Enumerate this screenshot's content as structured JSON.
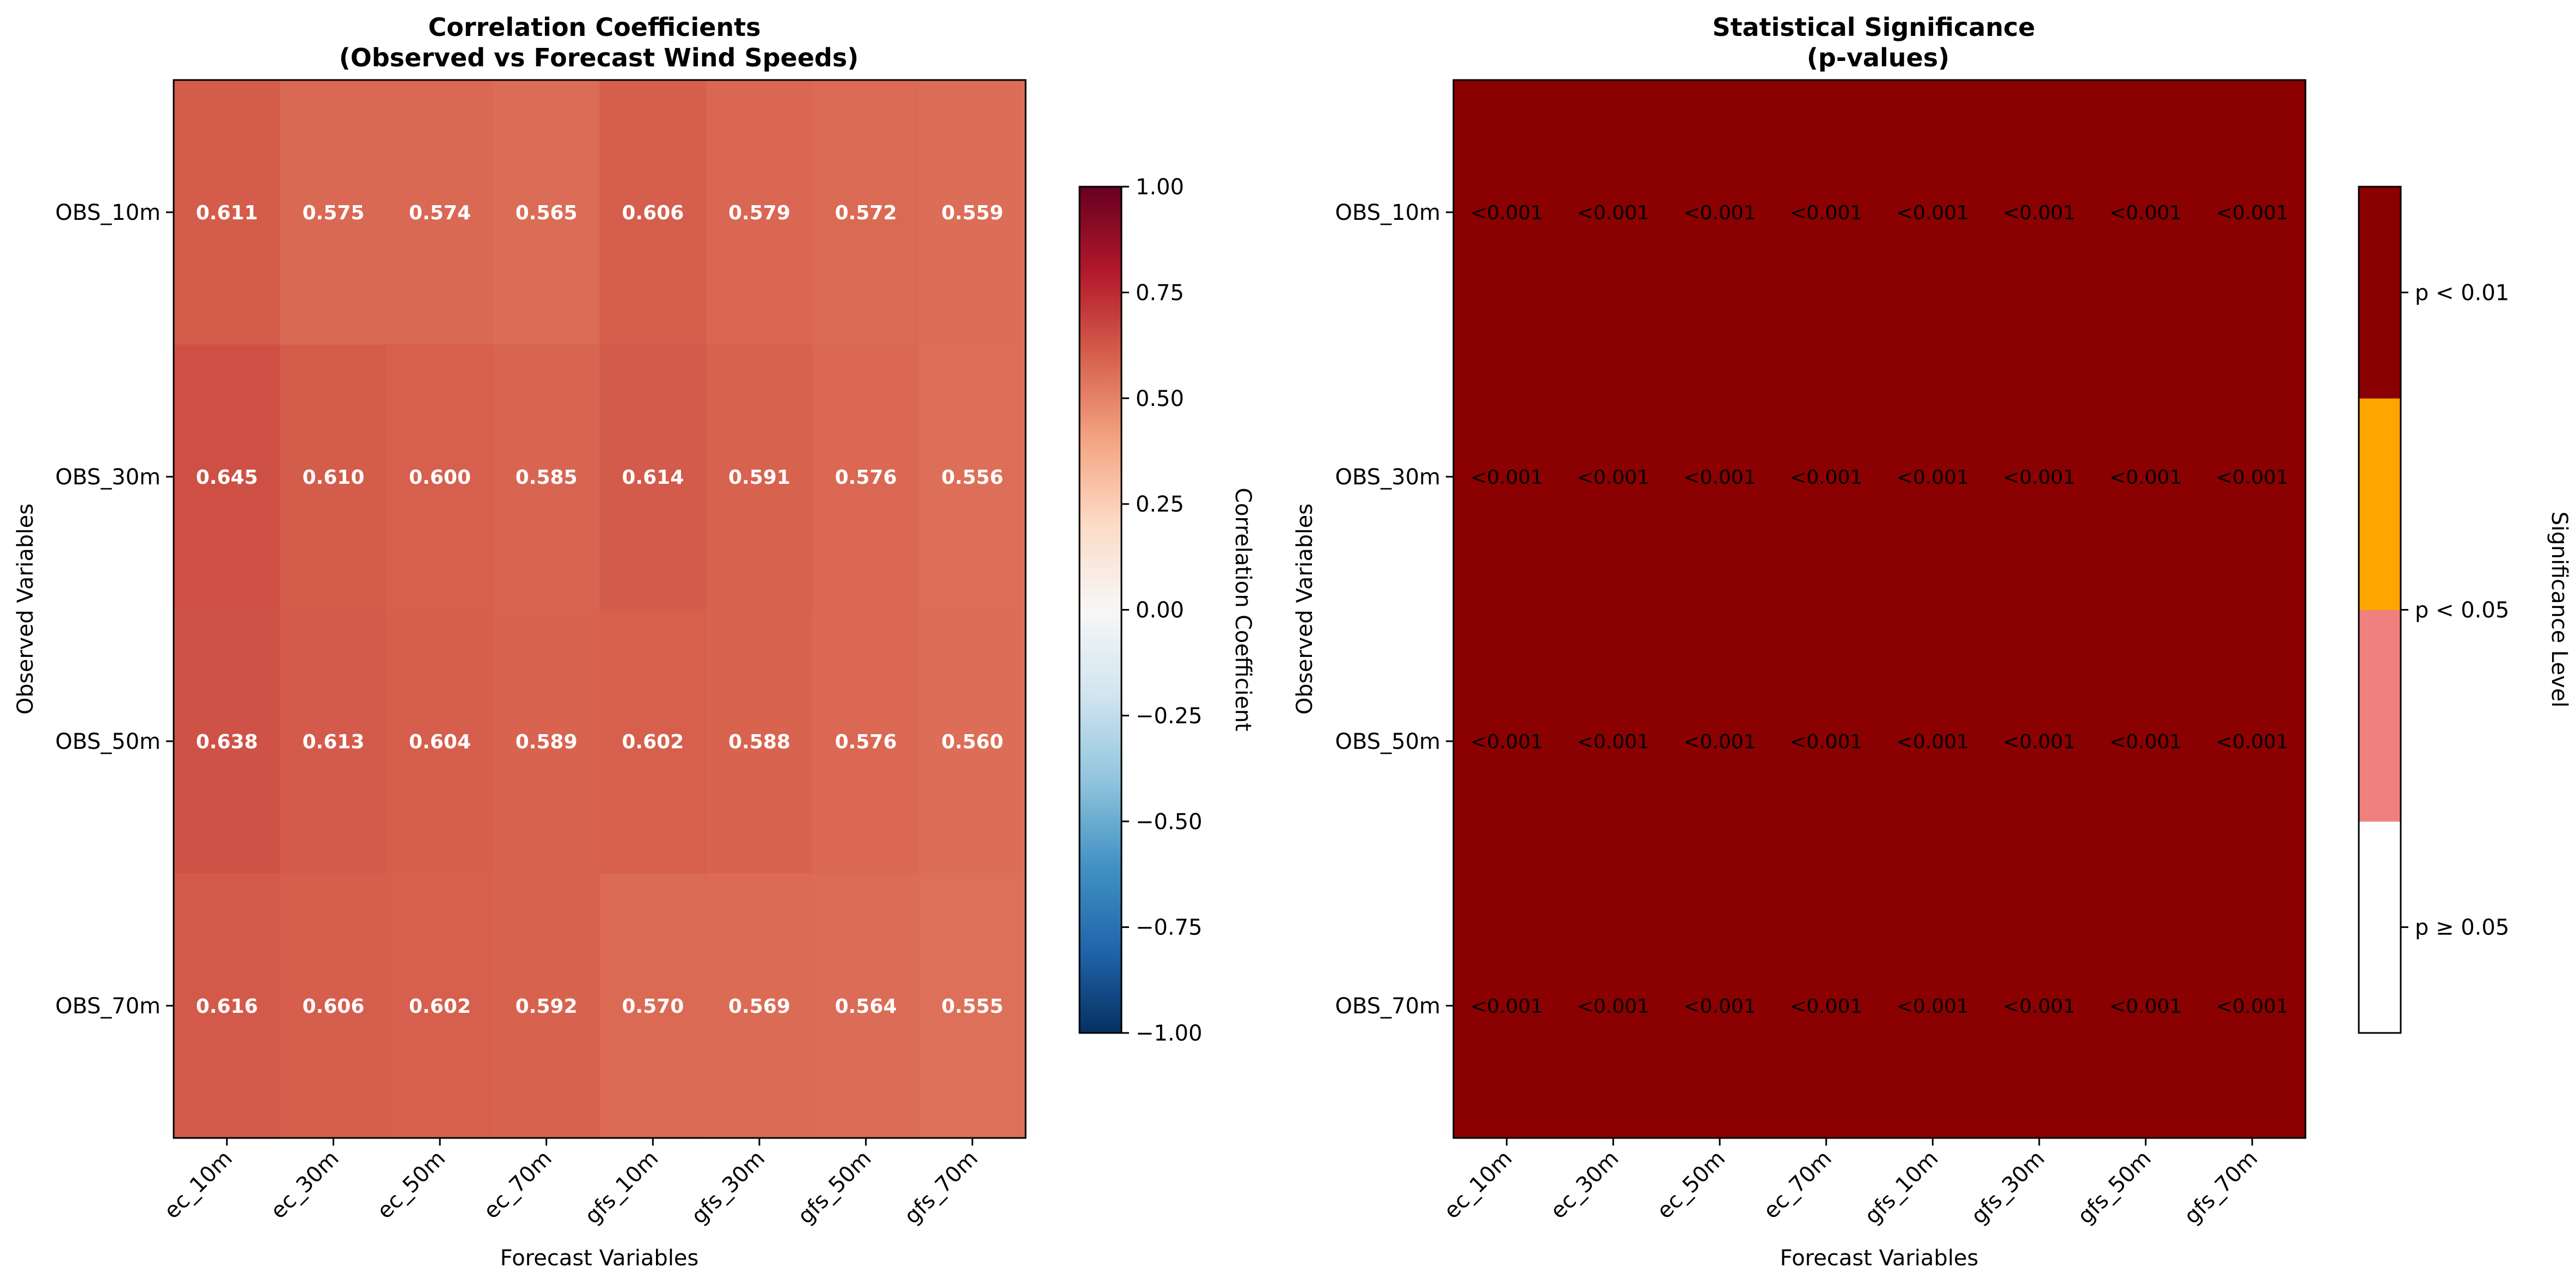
{
  "chart_data": [
    {
      "type": "heatmap",
      "title": "Correlation Coefficients\n(Observed vs Forecast Wind Speeds)",
      "xlabel": "Forecast Variables",
      "ylabel": "Observed Variables",
      "x_categories": [
        "ec_10m",
        "ec_30m",
        "ec_50m",
        "ec_70m",
        "gfs_10m",
        "gfs_30m",
        "gfs_50m",
        "gfs_70m"
      ],
      "y_categories": [
        "OBS_10m",
        "OBS_30m",
        "OBS_50m",
        "OBS_70m"
      ],
      "values": [
        [
          0.611,
          0.575,
          0.574,
          0.565,
          0.606,
          0.579,
          0.572,
          0.559
        ],
        [
          0.645,
          0.61,
          0.6,
          0.585,
          0.614,
          0.591,
          0.576,
          0.556
        ],
        [
          0.638,
          0.613,
          0.604,
          0.589,
          0.602,
          0.588,
          0.576,
          0.56
        ],
        [
          0.616,
          0.606,
          0.602,
          0.592,
          0.57,
          0.569,
          0.564,
          0.555
        ]
      ],
      "cell_labels": [
        [
          "0.611",
          "0.575",
          "0.574",
          "0.565",
          "0.606",
          "0.579",
          "0.572",
          "0.559"
        ],
        [
          "0.645",
          "0.610",
          "0.600",
          "0.585",
          "0.614",
          "0.591",
          "0.576",
          "0.556"
        ],
        [
          "0.638",
          "0.613",
          "0.604",
          "0.589",
          "0.602",
          "0.588",
          "0.576",
          "0.560"
        ],
        [
          "0.616",
          "0.606",
          "0.602",
          "0.592",
          "0.570",
          "0.569",
          "0.564",
          "0.555"
        ]
      ],
      "colormap": "RdBu_r",
      "colorbar": {
        "label": "Correlation Coefficient",
        "range": [
          -1.0,
          1.0
        ],
        "ticks": [
          -1.0,
          -0.75,
          -0.5,
          -0.25,
          0.0,
          0.25,
          0.5,
          0.75,
          1.0
        ],
        "tick_labels": [
          "−1.00",
          "−0.75",
          "−0.50",
          "−0.25",
          "0.00",
          "0.25",
          "0.50",
          "0.75",
          "1.00"
        ]
      }
    },
    {
      "type": "heatmap",
      "title": "Statistical Significance\n(p-values)",
      "xlabel": "Forecast Variables",
      "ylabel": "Observed Variables",
      "x_categories": [
        "ec_10m",
        "ec_30m",
        "ec_50m",
        "ec_70m",
        "gfs_10m",
        "gfs_30m",
        "gfs_50m",
        "gfs_70m"
      ],
      "y_categories": [
        "OBS_10m",
        "OBS_30m",
        "OBS_50m",
        "OBS_70m"
      ],
      "cell_labels": [
        [
          "<0.001",
          "<0.001",
          "<0.001",
          "<0.001",
          "<0.001",
          "<0.001",
          "<0.001",
          "<0.001"
        ],
        [
          "<0.001",
          "<0.001",
          "<0.001",
          "<0.001",
          "<0.001",
          "<0.001",
          "<0.001",
          "<0.001"
        ],
        [
          "<0.001",
          "<0.001",
          "<0.001",
          "<0.001",
          "<0.001",
          "<0.001",
          "<0.001",
          "<0.001"
        ],
        [
          "<0.001",
          "<0.001",
          "<0.001",
          "<0.001",
          "<0.001",
          "<0.001",
          "<0.001",
          "<0.001"
        ]
      ],
      "cell_color": "#8b0000",
      "colorbar": {
        "label": "Significance Level",
        "bands": [
          {
            "color": "#ffffff"
          },
          {
            "color": "#f08080"
          },
          {
            "color": "#ffa500"
          },
          {
            "color": "#8b0000"
          }
        ],
        "tick_labels": [
          "p ≥ 0.05",
          "p < 0.05",
          "p < 0.01"
        ]
      }
    }
  ]
}
